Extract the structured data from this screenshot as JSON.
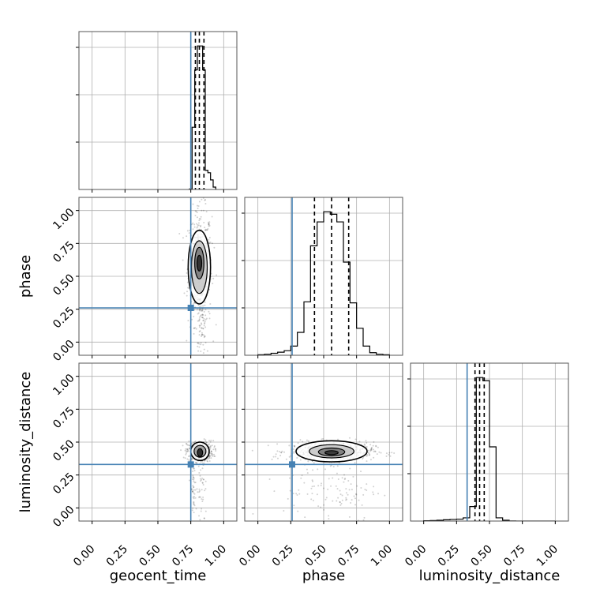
{
  "chart_data": {
    "type": "corner",
    "parameters": [
      "geocent_time",
      "phase",
      "luminosity_distance"
    ],
    "tick_labels": [
      "0.00",
      "0.25",
      "0.50",
      "0.75",
      "1.00"
    ],
    "axis_range": [
      -0.1,
      1.1
    ],
    "truths": [
      0.75,
      0.26,
      0.33
    ],
    "colors": {
      "truth": "#4682b4",
      "hist": "#000000",
      "grid": "#b0b0b0",
      "scatter": "#000000"
    },
    "grid": true,
    "quantiles": {
      "geocent_time": [
        0.785,
        0.815,
        0.85
      ],
      "phase": [
        0.43,
        0.56,
        0.69
      ],
      "luminosity_distance": [
        0.39,
        0.425,
        0.46
      ]
    },
    "histograms": {
      "geocent_time": {
        "bins": [
          0.74,
          0.76,
          0.78,
          0.8,
          0.82,
          0.84,
          0.86,
          0.88,
          0.9,
          0.92,
          0.94
        ],
        "counts": [
          1,
          130,
          250,
          300,
          300,
          250,
          40,
          35,
          20,
          5
        ]
      },
      "phase": {
        "bins": [
          0.0,
          0.05,
          0.1,
          0.15,
          0.2,
          0.25,
          0.3,
          0.35,
          0.4,
          0.45,
          0.5,
          0.55,
          0.6,
          0.65,
          0.7,
          0.75,
          0.8,
          0.85,
          0.9,
          0.95,
          1.0
        ],
        "counts": [
          1,
          2,
          4,
          6,
          9,
          18,
          45,
          105,
          215,
          262,
          282,
          277,
          262,
          183,
          103,
          53,
          18,
          5,
          2,
          1
        ]
      },
      "luminosity_distance": {
        "bins": [
          0.0,
          0.05,
          0.1,
          0.15,
          0.2,
          0.25,
          0.3,
          0.35,
          0.4,
          0.45,
          0.5,
          0.55,
          0.6,
          0.65,
          0.7,
          0.75,
          0.8,
          0.85,
          0.9,
          0.95,
          1.0
        ],
        "counts": [
          2,
          3,
          5,
          8,
          10,
          12,
          20,
          90,
          890,
          870,
          460,
          20,
          5,
          1,
          0,
          0,
          0,
          0,
          0,
          0
        ]
      }
    },
    "contours": {
      "phase_vs_geocent_time": [
        {
          "level": 1,
          "cx": 0.815,
          "cy": 0.57,
          "rx": 0.085,
          "ry": 0.28,
          "fill": "#ffffff"
        },
        {
          "level": 2,
          "cx": 0.815,
          "cy": 0.57,
          "rx": 0.06,
          "ry": 0.2,
          "fill": "#c8c8c8"
        },
        {
          "level": 3,
          "cx": 0.815,
          "cy": 0.6,
          "rx": 0.035,
          "ry": 0.12,
          "fill": "#7a7a7a"
        },
        {
          "level": 4,
          "cx": 0.815,
          "cy": 0.6,
          "rx": 0.018,
          "ry": 0.06,
          "fill": "#2a2a2a"
        }
      ],
      "luminosity_distance_vs_geocent_time": [
        {
          "level": 1,
          "cx": 0.82,
          "cy": 0.43,
          "rx": 0.07,
          "ry": 0.07,
          "fill": "#ffffff"
        },
        {
          "level": 2,
          "cx": 0.82,
          "cy": 0.43,
          "rx": 0.045,
          "ry": 0.045,
          "fill": "#999999"
        },
        {
          "level": 3,
          "cx": 0.82,
          "cy": 0.42,
          "rx": 0.02,
          "ry": 0.03,
          "fill": "#222222"
        }
      ],
      "luminosity_distance_vs_phase": [
        {
          "level": 1,
          "cx": 0.56,
          "cy": 0.43,
          "rx": 0.27,
          "ry": 0.08,
          "fill": "#ffffff"
        },
        {
          "level": 2,
          "cx": 0.56,
          "cy": 0.43,
          "rx": 0.17,
          "ry": 0.05,
          "fill": "#c8c8c8"
        },
        {
          "level": 3,
          "cx": 0.56,
          "cy": 0.425,
          "rx": 0.1,
          "ry": 0.03,
          "fill": "#7a7a7a"
        },
        {
          "level": 4,
          "cx": 0.56,
          "cy": 0.42,
          "rx": 0.05,
          "ry": 0.015,
          "fill": "#333333"
        }
      ]
    },
    "scatter_clouds": {
      "phase_vs_geocent_time": [
        {
          "cx": 0.82,
          "cy": 0.57,
          "sx": 0.045,
          "sy": 0.22,
          "n": 500
        },
        {
          "cx": 0.83,
          "cy": 0.1,
          "sx": 0.02,
          "sy": 0.1,
          "n": 60
        }
      ],
      "luminosity_distance_vs_geocent_time": [
        {
          "cx": 0.82,
          "cy": 0.43,
          "sx": 0.05,
          "sy": 0.04,
          "n": 400
        },
        {
          "cx": 0.77,
          "cy": 0.15,
          "sx": 0.01,
          "sy": 0.15,
          "n": 50
        },
        {
          "cx": 0.83,
          "cy": 0.15,
          "sx": 0.02,
          "sy": 0.15,
          "n": 50
        }
      ],
      "luminosity_distance_vs_phase": [
        {
          "cx": 0.56,
          "cy": 0.43,
          "sx": 0.16,
          "sy": 0.035,
          "n": 550
        },
        {
          "cx": 0.56,
          "cy": 0.15,
          "sx": 0.18,
          "sy": 0.13,
          "n": 120
        }
      ]
    }
  }
}
